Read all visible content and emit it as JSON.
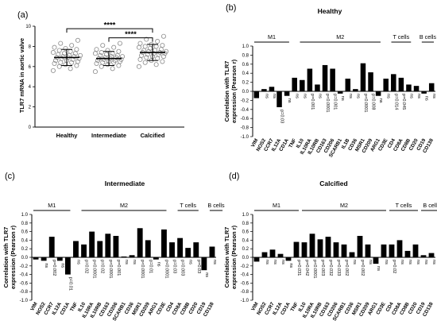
{
  "chart_data": [
    {
      "panel": "(a)",
      "type": "scatter",
      "title": "",
      "xlabel": "",
      "ylabel": "TLR7 mRNA in aortic valve",
      "ylim": [
        0,
        10
      ],
      "yticks": [
        0,
        2,
        4,
        6,
        8,
        10
      ],
      "categories": [
        "Healthy",
        "Intermediate",
        "Calcified"
      ],
      "groups": [
        {
          "name": "Healthy",
          "mean": 6.9,
          "sd": 0.8,
          "points": [
            5.6,
            5.8,
            6.0,
            6.1,
            6.2,
            6.3,
            6.4,
            6.4,
            6.5,
            6.6,
            6.6,
            6.7,
            6.8,
            6.8,
            6.9,
            6.9,
            7.0,
            7.0,
            7.1,
            7.1,
            7.2,
            7.3,
            7.3,
            7.4,
            7.5,
            7.6,
            7.7,
            7.8,
            7.9,
            8.1,
            8.3,
            8.6
          ]
        },
        {
          "name": "Intermediate",
          "mean": 6.8,
          "sd": 0.7,
          "points": [
            5.5,
            5.8,
            6.0,
            6.1,
            6.2,
            6.3,
            6.4,
            6.4,
            6.5,
            6.5,
            6.6,
            6.6,
            6.7,
            6.7,
            6.8,
            6.8,
            6.9,
            6.9,
            7.0,
            7.0,
            7.1,
            7.1,
            7.2,
            7.3,
            7.3,
            7.4,
            7.5,
            7.6,
            7.7,
            7.9,
            8.1,
            8.3
          ]
        },
        {
          "name": "Calcified",
          "mean": 7.4,
          "sd": 0.8,
          "points": [
            6.0,
            6.2,
            6.4,
            6.5,
            6.6,
            6.7,
            6.8,
            6.9,
            7.0,
            7.0,
            7.1,
            7.2,
            7.2,
            7.3,
            7.3,
            7.4,
            7.4,
            7.5,
            7.5,
            7.6,
            7.6,
            7.7,
            7.8,
            7.9,
            8.0,
            8.0,
            8.1,
            8.2,
            8.3,
            8.5,
            8.7,
            9.0
          ]
        }
      ],
      "annotations": [
        {
          "from": "Healthy",
          "to": "Calcified",
          "text": "****"
        },
        {
          "from": "Intermediate",
          "to": "Calcified",
          "text": "****"
        }
      ]
    },
    {
      "panel": "(b)",
      "type": "bar",
      "title": "Healthy",
      "ylabel": "Correlation with TLR7 expression (Pearson r)",
      "ylim": [
        -1.0,
        1.0
      ],
      "yticks": [
        -1.0,
        -0.8,
        -0.6,
        -0.4,
        -0.2,
        0.0,
        0.2,
        0.4,
        0.6,
        0.8,
        1.0
      ],
      "groups": [
        {
          "label": "M1",
          "start": 0,
          "end": 5
        },
        {
          "label": "M2",
          "start": 6,
          "end": 17
        },
        {
          "label": "T cells",
          "start": 18,
          "end": 21
        },
        {
          "label": "B cells",
          "start": 22,
          "end": 24
        }
      ],
      "categories": [
        "VIM",
        "NOS2",
        "CCR7",
        "IL12A",
        "CD1A",
        "TNF",
        "IL10",
        "IL10RA",
        "IL10RB",
        "CD163",
        "CD206",
        "SCARB1",
        "IL1B",
        "CD36",
        "MSR1",
        "CD209",
        "ARG1",
        "CD3E",
        "CD4",
        "CD8A",
        "CD8B",
        "CD20",
        "CD19",
        "CD138"
      ],
      "values": [
        -0.15,
        0.05,
        0.1,
        -0.35,
        -0.1,
        0.3,
        0.25,
        0.5,
        0.15,
        0.58,
        0.5,
        -0.05,
        0.28,
        0.05,
        0.62,
        0.42,
        -0.1,
        0.28,
        0.38,
        0.3,
        0.15,
        0.12,
        -0.05,
        0.18
      ],
      "labels": [
        "",
        "ns",
        "ns",
        "p=0.03",
        "ns",
        "ns",
        "ns",
        "p=0.001",
        "ns",
        "p<0.0001",
        "p=0.001",
        "ns",
        "ns",
        "ns",
        "p<0.0001",
        "p=0.008",
        "ns",
        "ns",
        "p=0.014",
        "p=0.045",
        "ns",
        "ns",
        "ns",
        "ns"
      ]
    },
    {
      "panel": "(c)",
      "type": "bar",
      "title": "Intermediate",
      "ylabel": "Correlation with TLR7 expression (Pearson r)",
      "ylim": [
        -1.0,
        1.0
      ],
      "yticks": [
        -1.0,
        -0.8,
        -0.6,
        -0.4,
        -0.2,
        0.0,
        0.2,
        0.4,
        0.6,
        0.8,
        1.0
      ],
      "groups": [
        {
          "label": "M1",
          "start": 0,
          "end": 5
        },
        {
          "label": "M2",
          "start": 6,
          "end": 17
        },
        {
          "label": "T cells",
          "start": 18,
          "end": 21
        },
        {
          "label": "B cells",
          "start": 22,
          "end": 24
        }
      ],
      "categories": [
        "VIM",
        "NOS2",
        "CCR7",
        "IL12A",
        "CD1A",
        "TNF",
        "IL10",
        "IL10RA",
        "IL10RB",
        "CD163",
        "CD206",
        "SCARB1",
        "CD36",
        "MSR1",
        "CD209",
        "ARG1",
        "CD3E",
        "CD4",
        "CD8A",
        "CD8B",
        "CD20",
        "CD19",
        "CD138"
      ],
      "values": [
        -0.05,
        -0.08,
        0.48,
        -0.08,
        -0.4,
        0.38,
        0.3,
        0.6,
        0.38,
        0.55,
        0.5,
        0.02,
        0.05,
        0.68,
        0.4,
        -0.05,
        0.65,
        0.35,
        0.45,
        0.22,
        0.35,
        -0.3,
        0.25
      ],
      "labels": [
        "",
        "ns",
        "p=0.002",
        "ns",
        "p=0.01",
        "ns",
        "p=0.02",
        "p<0.0001",
        "p=0.02",
        "p<0.0001",
        "p=0.001",
        "ns",
        "ns",
        "p<0.0001",
        "p=0.01",
        "ns",
        "p<0.0001",
        "p=0.03",
        "p=0.003",
        "ns",
        "p=0.03",
        "ns",
        "ns"
      ]
    },
    {
      "panel": "(d)",
      "type": "bar",
      "title": "Calcified",
      "ylabel": "Correlation with TLR7 expression (Pearson r)",
      "ylim": [
        -1.0,
        1.0
      ],
      "yticks": [
        -1.0,
        -0.8,
        -0.6,
        -0.4,
        -0.2,
        0.0,
        0.2,
        0.4,
        0.6,
        0.8,
        1.0
      ],
      "groups": [
        {
          "label": "M1",
          "start": 0,
          "end": 6
        },
        {
          "label": "M2",
          "start": 6,
          "end": 17
        },
        {
          "label": "T cells",
          "start": 17,
          "end": 21
        },
        {
          "label": "B cells",
          "start": 21,
          "end": 24
        }
      ],
      "categories": [
        "VIM",
        "NOS2",
        "CCR7",
        "IL12A",
        "CD1A",
        "TNF",
        "IL10",
        "IL10RA",
        "IL10RB",
        "CD163",
        "CD206",
        "SCARB1",
        "CD36",
        "MSR1",
        "CD209",
        "ARG1",
        "CD3E",
        "CD4",
        "CD8A",
        "CD8B",
        "CD20",
        "CD19",
        "CD138"
      ],
      "values": [
        -0.1,
        0.12,
        0.18,
        0.08,
        -0.08,
        0.36,
        0.35,
        0.55,
        0.42,
        0.48,
        0.35,
        0.3,
        0.12,
        0.5,
        0.3,
        -0.15,
        0.3,
        0.3,
        0.4,
        0.15,
        0.3,
        0.05,
        0.1
      ],
      "labels": [
        "",
        "ns",
        "ns",
        "ns",
        "ns",
        "p=0.031",
        "p=0.042",
        "p<0.0001",
        "p=0.003",
        "p=0.032",
        "p=0.033",
        "p=0.002",
        "ns",
        "p=0.002",
        "ns",
        "ns",
        "ns",
        "p=0.02",
        "ns",
        "ns",
        "ns",
        "ns",
        "ns"
      ]
    }
  ]
}
